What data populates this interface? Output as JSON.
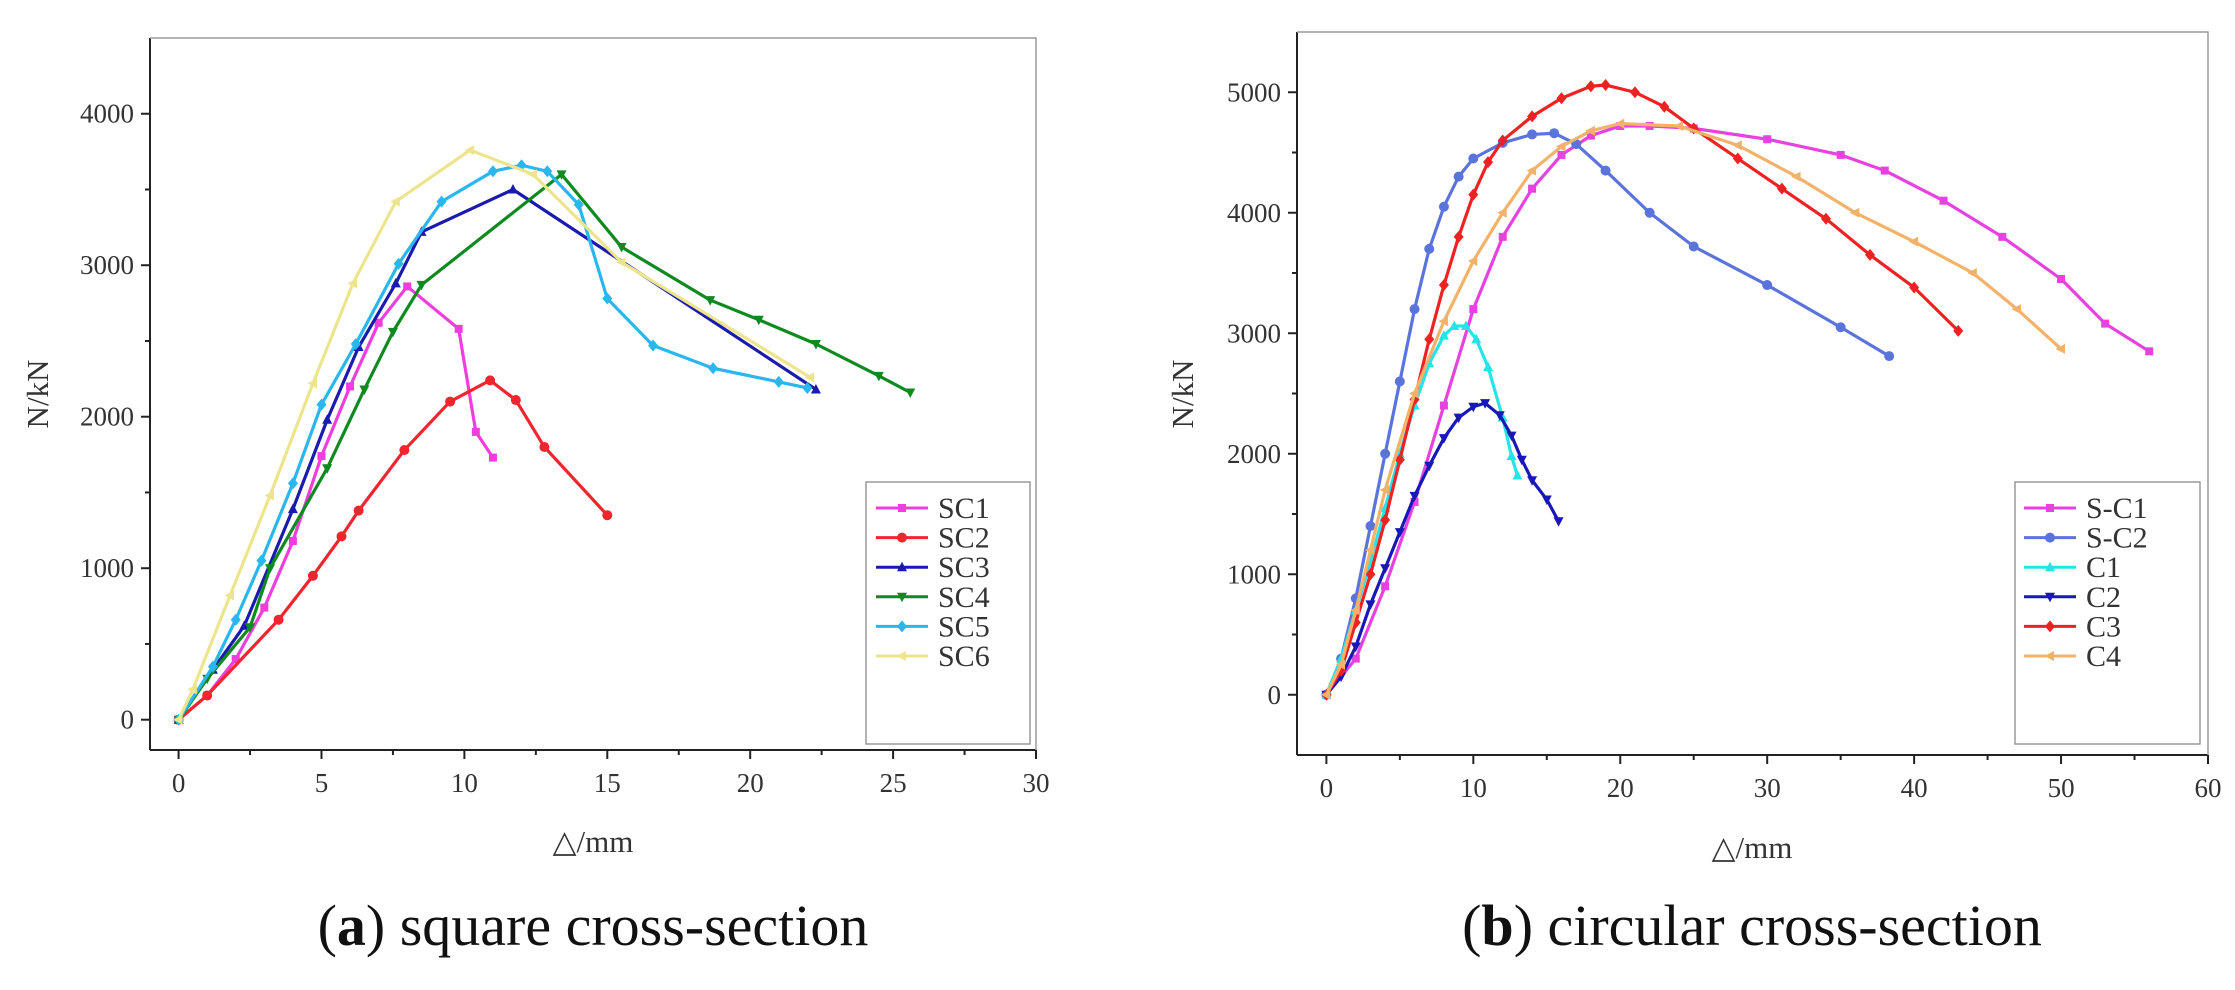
{
  "chart_data": [
    {
      "type": "line",
      "caption": {
        "open": "(",
        "letter": "a",
        "text": ") square cross-section"
      },
      "xlabel": "△/mm",
      "ylabel": "N/kN",
      "xlim": [
        -1,
        30
      ],
      "ylim": [
        -200,
        4500
      ],
      "xticks": [
        0,
        5,
        10,
        15,
        20,
        25,
        30
      ],
      "yticks": [
        0,
        1000,
        2000,
        3000,
        4000
      ],
      "legend_position": "bottom-right",
      "series": [
        {
          "name": "SC1",
          "color": "#ee3fdc",
          "marker": "square",
          "points": [
            [
              0,
              0
            ],
            [
              1,
              160
            ],
            [
              2,
              400
            ],
            [
              3,
              740
            ],
            [
              4,
              1180
            ],
            [
              5,
              1740
            ],
            [
              6,
              2200
            ],
            [
              7,
              2620
            ],
            [
              8,
              2860
            ],
            [
              9.8,
              2580
            ],
            [
              10.4,
              1900
            ],
            [
              11,
              1730
            ]
          ]
        },
        {
          "name": "SC2",
          "color": "#f1252d",
          "marker": "circle",
          "points": [
            [
              0,
              0
            ],
            [
              1,
              160
            ],
            [
              3.5,
              660
            ],
            [
              4.7,
              950
            ],
            [
              5.7,
              1210
            ],
            [
              6.3,
              1380
            ],
            [
              7.9,
              1780
            ],
            [
              9.5,
              2100
            ],
            [
              10.9,
              2240
            ],
            [
              11.8,
              2110
            ],
            [
              12.8,
              1800
            ],
            [
              15,
              1350
            ]
          ]
        },
        {
          "name": "SC3",
          "color": "#1a1aad",
          "marker": "triangle-up",
          "points": [
            [
              0,
              0
            ],
            [
              1.2,
              330
            ],
            [
              2.3,
              620
            ],
            [
              4,
              1390
            ],
            [
              5.2,
              1980
            ],
            [
              6.3,
              2460
            ],
            [
              7.6,
              2880
            ],
            [
              8.5,
              3220
            ],
            [
              11.7,
              3500
            ],
            [
              22.3,
              2180
            ]
          ]
        },
        {
          "name": "SC4",
          "color": "#0f8a20",
          "marker": "triangle-down",
          "points": [
            [
              0,
              0
            ],
            [
              1,
              270
            ],
            [
              2.5,
              610
            ],
            [
              3.2,
              1000
            ],
            [
              5.2,
              1660
            ],
            [
              6.5,
              2180
            ],
            [
              7.5,
              2560
            ],
            [
              8.5,
              2870
            ],
            [
              13.4,
              3600
            ],
            [
              15.5,
              3120
            ],
            [
              18.6,
              2770
            ],
            [
              20.3,
              2640
            ],
            [
              22.3,
              2480
            ],
            [
              24.5,
              2270
            ],
            [
              25.6,
              2160
            ]
          ]
        },
        {
          "name": "SC5",
          "color": "#2ab6ee",
          "marker": "diamond",
          "points": [
            [
              0,
              0
            ],
            [
              1.2,
              350
            ],
            [
              2,
              660
            ],
            [
              2.9,
              1050
            ],
            [
              4,
              1560
            ],
            [
              5,
              2080
            ],
            [
              6.2,
              2480
            ],
            [
              7.7,
              3010
            ],
            [
              9.2,
              3420
            ],
            [
              11,
              3620
            ],
            [
              12,
              3660
            ],
            [
              12.9,
              3620
            ],
            [
              14,
              3400
            ],
            [
              15,
              2780
            ],
            [
              16.6,
              2470
            ],
            [
              18.7,
              2320
            ],
            [
              21,
              2230
            ],
            [
              22,
              2190
            ]
          ]
        },
        {
          "name": "SC6",
          "color": "#ede58e",
          "marker": "triangle-left",
          "points": [
            [
              0,
              0
            ],
            [
              0.5,
              200
            ],
            [
              1.8,
              820
            ],
            [
              3.2,
              1480
            ],
            [
              4.7,
              2220
            ],
            [
              6.1,
              2880
            ],
            [
              7.6,
              3420
            ],
            [
              10.2,
              3760
            ],
            [
              12.4,
              3600
            ],
            [
              15.5,
              3020
            ],
            [
              22.1,
              2260
            ]
          ]
        }
      ]
    },
    {
      "type": "line",
      "caption": {
        "open": "(",
        "letter": "b",
        "text": ") circular cross-section"
      },
      "xlabel": "△/mm",
      "ylabel": "N/kN",
      "xlim": [
        -2,
        60
      ],
      "ylim": [
        -500,
        5500
      ],
      "xticks": [
        0,
        10,
        20,
        30,
        40,
        50,
        60
      ],
      "yticks": [
        0,
        1000,
        2000,
        3000,
        4000,
        5000
      ],
      "legend_position": "bottom-right",
      "series": [
        {
          "name": "S-C1",
          "color": "#e642df",
          "marker": "square",
          "points": [
            [
              0,
              0
            ],
            [
              2,
              300
            ],
            [
              4,
              900
            ],
            [
              6,
              1600
            ],
            [
              8,
              2400
            ],
            [
              10,
              3200
            ],
            [
              12,
              3800
            ],
            [
              14,
              4200
            ],
            [
              16,
              4480
            ],
            [
              18,
              4640
            ],
            [
              20,
              4720
            ],
            [
              22,
              4720
            ],
            [
              25,
              4700
            ],
            [
              30,
              4610
            ],
            [
              35,
              4480
            ],
            [
              38,
              4350
            ],
            [
              42,
              4100
            ],
            [
              46,
              3800
            ],
            [
              50,
              3450
            ],
            [
              53,
              3080
            ],
            [
              56,
              2850
            ]
          ]
        },
        {
          "name": "S-C2",
          "color": "#5b74dc",
          "marker": "circle",
          "points": [
            [
              0,
              0
            ],
            [
              1,
              300
            ],
            [
              2,
              800
            ],
            [
              3,
              1400
            ],
            [
              4,
              2000
            ],
            [
              5,
              2600
            ],
            [
              6,
              3200
            ],
            [
              7,
              3700
            ],
            [
              8,
              4050
            ],
            [
              9,
              4300
            ],
            [
              10,
              4450
            ],
            [
              12,
              4580
            ],
            [
              14,
              4650
            ],
            [
              15.5,
              4660
            ],
            [
              17,
              4570
            ],
            [
              19,
              4350
            ],
            [
              22,
              4000
            ],
            [
              25,
              3720
            ],
            [
              30,
              3400
            ],
            [
              35,
              3050
            ],
            [
              38.3,
              2810
            ]
          ]
        },
        {
          "name": "C1",
          "color": "#26e3e6",
          "marker": "triangle-up",
          "points": [
            [
              0,
              0
            ],
            [
              1,
              300
            ],
            [
              2,
              700
            ],
            [
              3,
              1100
            ],
            [
              4,
              1550
            ],
            [
              5,
              2000
            ],
            [
              6,
              2400
            ],
            [
              7,
              2750
            ],
            [
              8,
              2980
            ],
            [
              8.7,
              3060
            ],
            [
              9.5,
              3060
            ],
            [
              10.2,
              2950
            ],
            [
              11,
              2720
            ],
            [
              12,
              2300
            ],
            [
              12.6,
              1980
            ],
            [
              13,
              1820
            ]
          ]
        },
        {
          "name": "C2",
          "color": "#1818b8",
          "marker": "triangle-down",
          "points": [
            [
              0,
              0
            ],
            [
              1,
              150
            ],
            [
              2,
              400
            ],
            [
              3,
              750
            ],
            [
              4,
              1050
            ],
            [
              5,
              1350
            ],
            [
              6,
              1650
            ],
            [
              7,
              1900
            ],
            [
              8,
              2130
            ],
            [
              9,
              2300
            ],
            [
              10,
              2390
            ],
            [
              10.8,
              2420
            ],
            [
              11.8,
              2320
            ],
            [
              12.6,
              2150
            ],
            [
              13.3,
              1950
            ],
            [
              14,
              1780
            ],
            [
              15,
              1620
            ],
            [
              15.8,
              1440
            ]
          ]
        },
        {
          "name": "C3",
          "color": "#ee2222",
          "marker": "diamond",
          "points": [
            [
              0,
              0
            ],
            [
              1,
              200
            ],
            [
              2,
              600
            ],
            [
              3,
              1000
            ],
            [
              4,
              1450
            ],
            [
              5,
              1950
            ],
            [
              6,
              2450
            ],
            [
              7,
              2950
            ],
            [
              8,
              3400
            ],
            [
              9,
              3800
            ],
            [
              10,
              4150
            ],
            [
              11,
              4420
            ],
            [
              12,
              4600
            ],
            [
              14,
              4800
            ],
            [
              16,
              4950
            ],
            [
              18,
              5050
            ],
            [
              19,
              5060
            ],
            [
              21,
              5000
            ],
            [
              23,
              4880
            ],
            [
              25,
              4700
            ],
            [
              28,
              4450
            ],
            [
              31,
              4200
            ],
            [
              34,
              3950
            ],
            [
              37,
              3650
            ],
            [
              40,
              3380
            ],
            [
              43,
              3020
            ]
          ]
        },
        {
          "name": "C4",
          "color": "#f2b26a",
          "marker": "triangle-left",
          "points": [
            [
              0,
              0
            ],
            [
              1,
              250
            ],
            [
              2,
              700
            ],
            [
              3,
              1200
            ],
            [
              4,
              1700
            ],
            [
              6,
              2500
            ],
            [
              8,
              3100
            ],
            [
              10,
              3600
            ],
            [
              12,
              4000
            ],
            [
              14,
              4350
            ],
            [
              16,
              4550
            ],
            [
              18,
              4680
            ],
            [
              20,
              4740
            ],
            [
              24,
              4720
            ],
            [
              28,
              4560
            ],
            [
              32,
              4300
            ],
            [
              36,
              4000
            ],
            [
              40,
              3760
            ],
            [
              44,
              3500
            ],
            [
              47,
              3200
            ],
            [
              50,
              2870
            ]
          ]
        }
      ]
    }
  ]
}
